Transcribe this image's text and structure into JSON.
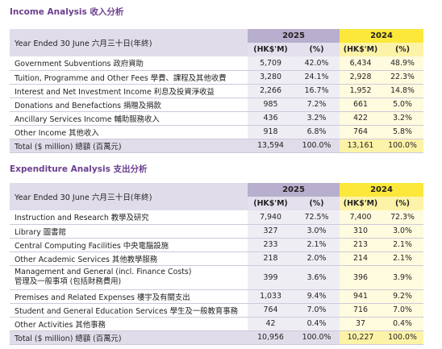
{
  "income": {
    "title": "Income Analysis 收入分析",
    "header_label": "Year Ended 30 June 六月三十日(年終)",
    "year_2025": "2025",
    "year_2024": "2024",
    "col_amount": "(HK$'M)",
    "col_pct": "(%)",
    "rows": [
      {
        "label": "Government Subventions 政府資助",
        "a25": "5,709",
        "p25": "42.0%",
        "a24": "6,434",
        "p24": "48.9%"
      },
      {
        "label": "Tuition, Programme and Other Fees 學費、課程及其他收費",
        "a25": "3,280",
        "p25": "24.1%",
        "a24": "2,928",
        "p24": "22.3%"
      },
      {
        "label": "Interest and Net Investment Income 利息及投資淨收益",
        "a25": "2,266",
        "p25": "16.7%",
        "a24": "1,952",
        "p24": "14.8%"
      },
      {
        "label": "Donations and Benefactions 捐贈及捐款",
        "a25": "985",
        "p25": "7.2%",
        "a24": "661",
        "p24": "5.0%"
      },
      {
        "label": "Ancillary Services Income 輔助服務收入",
        "a25": "436",
        "p25": "3.2%",
        "a24": "422",
        "p24": "3.2%"
      },
      {
        "label": "Other Income 其他收入",
        "a25": "918",
        "p25": "6.8%",
        "a24": "764",
        "p24": "5.8%"
      }
    ],
    "total": {
      "label": "Total ($ million) 總額 (百萬元)",
      "a25": "13,594",
      "p25": "100.0%",
      "a24": "13,161",
      "p24": "100.0%"
    }
  },
  "expenditure": {
    "title": "Expenditure Analysis 支出分析",
    "header_label": "Year Ended 30 June 六月三十日(年終)",
    "year_2025": "2025",
    "year_2024": "2024",
    "col_amount": "(HK$'M)",
    "col_pct": "(%)",
    "rows": [
      {
        "label": "Instruction and Research 教學及研究",
        "a25": "7,940",
        "p25": "72.5%",
        "a24": "7,400",
        "p24": "72.3%"
      },
      {
        "label": "Library 圖書館",
        "a25": "327",
        "p25": "3.0%",
        "a24": "310",
        "p24": "3.0%"
      },
      {
        "label": "Central Computing Facilities 中央電腦設施",
        "a25": "233",
        "p25": "2.1%",
        "a24": "213",
        "p24": "2.1%"
      },
      {
        "label": "Other Academic Services 其他教學服務",
        "a25": "218",
        "p25": "2.0%",
        "a24": "214",
        "p24": "2.1%"
      },
      {
        "label": "Management and General (incl. Finance Costs)",
        "label2": "管理及一般事項 (包括財務費用)",
        "a25": "399",
        "p25": "3.6%",
        "a24": "396",
        "p24": "3.9%"
      },
      {
        "label": "Premises and Related Expenses 樓宇及有關支出",
        "a25": "1,033",
        "p25": "9.4%",
        "a24": "941",
        "p24": "9.2%"
      },
      {
        "label": "Student and General Education Services 學生及一般教育事務",
        "a25": "764",
        "p25": "7.0%",
        "a24": "716",
        "p24": "7.0%"
      },
      {
        "label": "Other Activities 其他事務",
        "a25": "42",
        "p25": "0.4%",
        "a24": "37",
        "p24": "0.4%"
      }
    ],
    "total": {
      "label": "Total ($ million) 總額 (百萬元)",
      "a25": "10,956",
      "p25": "100.0%",
      "a24": "10,227",
      "p24": "100.0%"
    }
  }
}
